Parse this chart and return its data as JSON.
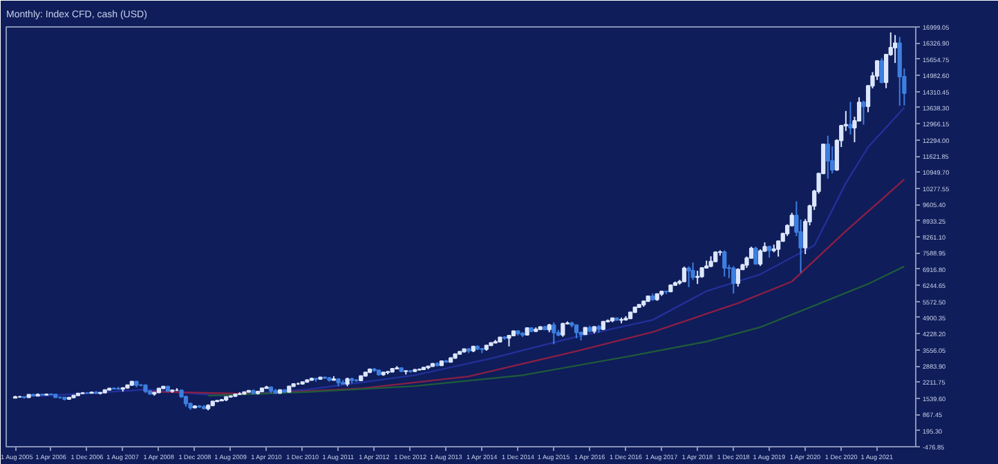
{
  "chart_data": {
    "type": "candlestick",
    "title": "Monthly: Index CFD, cash (USD)",
    "grid": false,
    "xlim": [
      "2005-06-01",
      "2022-04-20"
    ],
    "ylim": [
      -476.85,
      16999.05
    ],
    "xticks": [
      {
        "value": "2005-08-01",
        "label": "1 Aug 2005"
      },
      {
        "value": "2006-04-01",
        "label": "1 Apr 2006"
      },
      {
        "value": "2006-12-01",
        "label": "1 Dec 2006"
      },
      {
        "value": "2007-08-01",
        "label": "1 Aug 2007"
      },
      {
        "value": "2008-04-01",
        "label": "1 Apr 2008"
      },
      {
        "value": "2008-12-01",
        "label": "1 Dec 2008"
      },
      {
        "value": "2009-08-01",
        "label": "1 Aug 2009"
      },
      {
        "value": "2010-04-01",
        "label": "1 Apr 2010"
      },
      {
        "value": "2010-12-01",
        "label": "1 Dec 2010"
      },
      {
        "value": "2011-08-01",
        "label": "1 Aug 2011"
      },
      {
        "value": "2012-04-01",
        "label": "1 Apr 2012"
      },
      {
        "value": "2012-12-01",
        "label": "1 Dec 2012"
      },
      {
        "value": "2013-08-01",
        "label": "1 Aug 2013"
      },
      {
        "value": "2014-04-01",
        "label": "1 Apr 2014"
      },
      {
        "value": "2014-12-01",
        "label": "1 Dec 2014"
      },
      {
        "value": "2015-08-01",
        "label": "1 Aug 2015"
      },
      {
        "value": "2016-04-01",
        "label": "1 Apr 2016"
      },
      {
        "value": "2016-12-01",
        "label": "1 Dec 2016"
      },
      {
        "value": "2017-08-01",
        "label": "1 Aug 2017"
      },
      {
        "value": "2018-04-01",
        "label": "1 Apr 2018"
      },
      {
        "value": "2018-12-01",
        "label": "1 Dec 2018"
      },
      {
        "value": "2019-08-01",
        "label": "1 Aug 2019"
      },
      {
        "value": "2020-04-01",
        "label": "1 Apr 2020"
      },
      {
        "value": "2020-12-01",
        "label": "1 Dec 2020"
      },
      {
        "value": "2021-08-01",
        "label": "1 Aug 2021"
      }
    ],
    "yticks": [
      {
        "value": -476.85,
        "label": "-476.85"
      },
      {
        "value": 195.3,
        "label": "195.30"
      },
      {
        "value": 867.45,
        "label": "867.45"
      },
      {
        "value": 1539.6,
        "label": "1539.60"
      },
      {
        "value": 2211.75,
        "label": "2211.75"
      },
      {
        "value": 2883.9,
        "label": "2883.90"
      },
      {
        "value": 3556.05,
        "label": "3556.05"
      },
      {
        "value": 4228.2,
        "label": "4228.20"
      },
      {
        "value": 4900.35,
        "label": "4900.35"
      },
      {
        "value": 5572.5,
        "label": "5572.50"
      },
      {
        "value": 6244.65,
        "label": "6244.65"
      },
      {
        "value": 6916.8,
        "label": "6916.80"
      },
      {
        "value": 7588.95,
        "label": "7588.95"
      },
      {
        "value": 8261.1,
        "label": "8261.10"
      },
      {
        "value": 8933.25,
        "label": "8933.25"
      },
      {
        "value": 9605.4,
        "label": "9605.40"
      },
      {
        "value": 10277.55,
        "label": "10277.55"
      },
      {
        "value": 10949.7,
        "label": "10949.70"
      },
      {
        "value": 11621.85,
        "label": "11621.85"
      },
      {
        "value": 12294,
        "label": "12294.00"
      },
      {
        "value": 12966.15,
        "label": "12966.15"
      },
      {
        "value": 13638.3,
        "label": "13638.30"
      },
      {
        "value": 14310.45,
        "label": "14310.45"
      },
      {
        "value": 14982.6,
        "label": "14982.60"
      },
      {
        "value": 15654.75,
        "label": "15654.75"
      },
      {
        "value": 16326.9,
        "label": "16326.90"
      },
      {
        "value": 16999.05,
        "label": "16999.05"
      }
    ],
    "series": [
      {
        "type": "line",
        "color": "#22309a",
        "x": [
          "2006-01",
          "2008-01",
          "2009-06",
          "2011-01",
          "2013-01",
          "2014-06",
          "2016-01",
          "2017-06",
          "2018-06",
          "2019-06",
          "2020-06",
          "2021-01",
          "2021-06",
          "2022-02"
        ],
        "values": [
          1620,
          1900,
          1650,
          1900,
          2500,
          3200,
          4100,
          4800,
          6000,
          6700,
          7900,
          10500,
          12000,
          13640
        ]
      },
      {
        "type": "line",
        "color": "#8a1f45",
        "x": [
          "2008-01",
          "2010-01",
          "2012-01",
          "2014-01",
          "2016-01",
          "2017-06",
          "2019-01",
          "2020-01",
          "2021-01",
          "2022-02"
        ],
        "values": [
          1820,
          1720,
          1950,
          2450,
          3500,
          4300,
          5500,
          6400,
          8500,
          10650
        ]
      },
      {
        "type": "line",
        "color": "#1f5a3c",
        "x": [
          "2009-03",
          "2011-01",
          "2013-01",
          "2015-01",
          "2017-01",
          "2018-06",
          "2019-06",
          "2020-06",
          "2021-06",
          "2022-02"
        ],
        "values": [
          1650,
          1800,
          2050,
          2500,
          3300,
          3900,
          4500,
          5400,
          6300,
          7030
        ]
      },
      {
        "type": "candlestick",
        "x": [
          "2005-08",
          "2005-09",
          "2005-10",
          "2005-11",
          "2005-12",
          "2006-01",
          "2006-02",
          "2006-03",
          "2006-04",
          "2006-05",
          "2006-06",
          "2006-07",
          "2006-08",
          "2006-09",
          "2006-10",
          "2006-11",
          "2006-12",
          "2007-01",
          "2007-02",
          "2007-03",
          "2007-04",
          "2007-05",
          "2007-06",
          "2007-07",
          "2007-08",
          "2007-09",
          "2007-10",
          "2007-11",
          "2007-12",
          "2008-01",
          "2008-02",
          "2008-03",
          "2008-04",
          "2008-05",
          "2008-06",
          "2008-07",
          "2008-08",
          "2008-09",
          "2008-10",
          "2008-11",
          "2008-12",
          "2009-01",
          "2009-02",
          "2009-03",
          "2009-04",
          "2009-05",
          "2009-06",
          "2009-07",
          "2009-08",
          "2009-09",
          "2009-10",
          "2009-11",
          "2009-12",
          "2010-01",
          "2010-02",
          "2010-03",
          "2010-04",
          "2010-05",
          "2010-06",
          "2010-07",
          "2010-08",
          "2010-09",
          "2010-10",
          "2010-11",
          "2010-12",
          "2011-01",
          "2011-02",
          "2011-03",
          "2011-04",
          "2011-05",
          "2011-06",
          "2011-07",
          "2011-08",
          "2011-09",
          "2011-10",
          "2011-11",
          "2011-12",
          "2012-01",
          "2012-02",
          "2012-03",
          "2012-04",
          "2012-05",
          "2012-06",
          "2012-07",
          "2012-08",
          "2012-09",
          "2012-10",
          "2012-11",
          "2012-12",
          "2013-01",
          "2013-02",
          "2013-03",
          "2013-04",
          "2013-05",
          "2013-06",
          "2013-07",
          "2013-08",
          "2013-09",
          "2013-10",
          "2013-11",
          "2013-12",
          "2014-01",
          "2014-02",
          "2014-03",
          "2014-04",
          "2014-05",
          "2014-06",
          "2014-07",
          "2014-08",
          "2014-09",
          "2014-10",
          "2014-11",
          "2014-12",
          "2015-01",
          "2015-02",
          "2015-03",
          "2015-04",
          "2015-05",
          "2015-06",
          "2015-07",
          "2015-08",
          "2015-09",
          "2015-10",
          "2015-11",
          "2015-12",
          "2016-01",
          "2016-02",
          "2016-03",
          "2016-04",
          "2016-05",
          "2016-06",
          "2016-07",
          "2016-08",
          "2016-09",
          "2016-10",
          "2016-11",
          "2016-12",
          "2017-01",
          "2017-02",
          "2017-03",
          "2017-04",
          "2017-05",
          "2017-06",
          "2017-07",
          "2017-08",
          "2017-09",
          "2017-10",
          "2017-11",
          "2017-12",
          "2018-01",
          "2018-02",
          "2018-03",
          "2018-04",
          "2018-05",
          "2018-06",
          "2018-07",
          "2018-08",
          "2018-09",
          "2018-10",
          "2018-11",
          "2018-12",
          "2019-01",
          "2019-02",
          "2019-03",
          "2019-04",
          "2019-05",
          "2019-06",
          "2019-07",
          "2019-08",
          "2019-09",
          "2019-10",
          "2019-11",
          "2019-12",
          "2020-01",
          "2020-02",
          "2020-03",
          "2020-04",
          "2020-05",
          "2020-06",
          "2020-07",
          "2020-08",
          "2020-09",
          "2020-10",
          "2020-11",
          "2020-12",
          "2021-01",
          "2021-02",
          "2021-03",
          "2021-04",
          "2021-05",
          "2021-06",
          "2021-07",
          "2021-08",
          "2021-09",
          "2021-10",
          "2021-11",
          "2021-12",
          "2022-01",
          "2022-02"
        ],
        "ohlc": [
          [
            1560,
            1640,
            1540,
            1600
          ],
          [
            1600,
            1640,
            1560,
            1602
          ],
          [
            1602,
            1620,
            1530,
            1580
          ],
          [
            1580,
            1700,
            1570,
            1690
          ],
          [
            1690,
            1720,
            1630,
            1645
          ],
          [
            1645,
            1740,
            1630,
            1700
          ],
          [
            1700,
            1730,
            1650,
            1680
          ],
          [
            1680,
            1730,
            1660,
            1710
          ],
          [
            1710,
            1750,
            1680,
            1700
          ],
          [
            1700,
            1710,
            1560,
            1580
          ],
          [
            1580,
            1600,
            1520,
            1575
          ],
          [
            1575,
            1580,
            1450,
            1505
          ],
          [
            1505,
            1590,
            1480,
            1570
          ],
          [
            1570,
            1670,
            1560,
            1655
          ],
          [
            1655,
            1760,
            1650,
            1740
          ],
          [
            1740,
            1800,
            1720,
            1760
          ],
          [
            1760,
            1790,
            1730,
            1757
          ],
          [
            1757,
            1820,
            1740,
            1790
          ],
          [
            1790,
            1840,
            1730,
            1750
          ],
          [
            1750,
            1800,
            1700,
            1770
          ],
          [
            1770,
            1900,
            1760,
            1890
          ],
          [
            1890,
            1960,
            1870,
            1950
          ],
          [
            1950,
            1990,
            1900,
            1934
          ],
          [
            1934,
            2020,
            1910,
            1930
          ],
          [
            1930,
            1980,
            1820,
            1970
          ],
          [
            1970,
            2100,
            1950,
            2090
          ],
          [
            2090,
            2240,
            2070,
            2240
          ],
          [
            2240,
            2240,
            2000,
            2090
          ],
          [
            2090,
            2130,
            2040,
            2085
          ],
          [
            2085,
            2090,
            1760,
            1840
          ],
          [
            1840,
            1880,
            1710,
            1720
          ],
          [
            1720,
            1800,
            1650,
            1780
          ],
          [
            1780,
            1960,
            1760,
            1950
          ],
          [
            1950,
            2050,
            1930,
            2030
          ],
          [
            2030,
            2060,
            1830,
            1840
          ],
          [
            1840,
            1910,
            1770,
            1870
          ],
          [
            1870,
            1960,
            1850,
            1870
          ],
          [
            1870,
            1900,
            1560,
            1610
          ],
          [
            1610,
            1650,
            1190,
            1320
          ],
          [
            1320,
            1360,
            1060,
            1150
          ],
          [
            1150,
            1250,
            1140,
            1210
          ],
          [
            1210,
            1260,
            1140,
            1180
          ],
          [
            1180,
            1260,
            1110,
            1110
          ],
          [
            1110,
            1290,
            1040,
            1240
          ],
          [
            1240,
            1420,
            1230,
            1410
          ],
          [
            1410,
            1470,
            1380,
            1440
          ],
          [
            1440,
            1510,
            1420,
            1480
          ],
          [
            1480,
            1610,
            1420,
            1600
          ],
          [
            1600,
            1660,
            1570,
            1630
          ],
          [
            1630,
            1730,
            1600,
            1710
          ],
          [
            1710,
            1790,
            1690,
            1720
          ],
          [
            1720,
            1810,
            1700,
            1800
          ],
          [
            1800,
            1880,
            1790,
            1860
          ],
          [
            1860,
            1900,
            1730,
            1740
          ],
          [
            1740,
            1830,
            1700,
            1820
          ],
          [
            1820,
            1970,
            1810,
            1960
          ],
          [
            1960,
            2060,
            1950,
            2000
          ],
          [
            2000,
            2030,
            1750,
            1850
          ],
          [
            1850,
            1930,
            1750,
            1760
          ],
          [
            1760,
            1900,
            1730,
            1890
          ],
          [
            1890,
            1910,
            1780,
            1800
          ],
          [
            1800,
            2050,
            1800,
            2040
          ],
          [
            2040,
            2150,
            2030,
            2140
          ],
          [
            2140,
            2200,
            2100,
            2140
          ],
          [
            2140,
            2230,
            2130,
            2220
          ],
          [
            2220,
            2330,
            2210,
            2300
          ],
          [
            2300,
            2400,
            2280,
            2360
          ],
          [
            2360,
            2370,
            2230,
            2340
          ],
          [
            2340,
            2430,
            2310,
            2410
          ],
          [
            2410,
            2440,
            2340,
            2390
          ],
          [
            2390,
            2400,
            2240,
            2300
          ],
          [
            2300,
            2460,
            2290,
            2340
          ],
          [
            2340,
            2350,
            2040,
            2190
          ],
          [
            2190,
            2300,
            2130,
            2140
          ],
          [
            2140,
            2400,
            2040,
            2350
          ],
          [
            2350,
            2400,
            2160,
            2290
          ],
          [
            2290,
            2340,
            2230,
            2280
          ],
          [
            2280,
            2480,
            2270,
            2470
          ],
          [
            2470,
            2630,
            2460,
            2620
          ],
          [
            2620,
            2770,
            2610,
            2750
          ],
          [
            2750,
            2800,
            2640,
            2710
          ],
          [
            2710,
            2720,
            2490,
            2530
          ],
          [
            2530,
            2630,
            2480,
            2620
          ],
          [
            2620,
            2680,
            2540,
            2640
          ],
          [
            2640,
            2790,
            2620,
            2770
          ],
          [
            2770,
            2880,
            2760,
            2800
          ],
          [
            2800,
            2820,
            2640,
            2660
          ],
          [
            2660,
            2700,
            2530,
            2680
          ],
          [
            2680,
            2710,
            2600,
            2660
          ],
          [
            2660,
            2760,
            2640,
            2730
          ],
          [
            2730,
            2780,
            2700,
            2740
          ],
          [
            2740,
            2830,
            2720,
            2820
          ],
          [
            2820,
            2880,
            2750,
            2870
          ],
          [
            2870,
            3010,
            2860,
            2980
          ],
          [
            2980,
            3040,
            2870,
            2910
          ],
          [
            2910,
            3100,
            2900,
            3090
          ],
          [
            3090,
            3140,
            3030,
            3050
          ],
          [
            3050,
            3240,
            3040,
            3220
          ],
          [
            3220,
            3390,
            3190,
            3380
          ],
          [
            3380,
            3490,
            3370,
            3480
          ],
          [
            3480,
            3600,
            3440,
            3590
          ],
          [
            3590,
            3630,
            3420,
            3520
          ],
          [
            3520,
            3720,
            3460,
            3700
          ],
          [
            3700,
            3740,
            3550,
            3600
          ],
          [
            3600,
            3640,
            3420,
            3580
          ],
          [
            3580,
            3750,
            3520,
            3740
          ],
          [
            3740,
            3860,
            3720,
            3850
          ],
          [
            3850,
            3970,
            3830,
            3890
          ],
          [
            3890,
            4090,
            3860,
            4080
          ],
          [
            4080,
            4120,
            3980,
            4050
          ],
          [
            4050,
            4160,
            3700,
            4150
          ],
          [
            4150,
            4350,
            4140,
            4340
          ],
          [
            4340,
            4370,
            4150,
            4240
          ],
          [
            4240,
            4300,
            4090,
            4180
          ],
          [
            4180,
            4480,
            4150,
            4470
          ],
          [
            4470,
            4490,
            4290,
            4330
          ],
          [
            4330,
            4490,
            4300,
            4410
          ],
          [
            4410,
            4540,
            4380,
            4510
          ],
          [
            4510,
            4560,
            4380,
            4400
          ],
          [
            4400,
            4640,
            4290,
            4590
          ],
          [
            4590,
            4700,
            3790,
            4270
          ],
          [
            4270,
            4390,
            4120,
            4180
          ],
          [
            4180,
            4680,
            4100,
            4650
          ],
          [
            4650,
            4740,
            4620,
            4670
          ],
          [
            4670,
            4730,
            4490,
            4590
          ],
          [
            4590,
            4600,
            4040,
            4280
          ],
          [
            4280,
            4310,
            3950,
            4200
          ],
          [
            4200,
            4490,
            4190,
            4480
          ],
          [
            4480,
            4560,
            4300,
            4340
          ],
          [
            4340,
            4530,
            4240,
            4520
          ],
          [
            4520,
            4590,
            4270,
            4420
          ],
          [
            4420,
            4740,
            4380,
            4730
          ],
          [
            4730,
            4820,
            4700,
            4770
          ],
          [
            4770,
            4900,
            4710,
            4880
          ],
          [
            4880,
            4900,
            4780,
            4800
          ],
          [
            4800,
            4900,
            4660,
            4810
          ],
          [
            4810,
            4960,
            4770,
            4860
          ],
          [
            4860,
            5130,
            4850,
            5120
          ],
          [
            5120,
            5340,
            5110,
            5330
          ],
          [
            5330,
            5450,
            5300,
            5440
          ],
          [
            5440,
            5590,
            5350,
            5580
          ],
          [
            5580,
            5810,
            5570,
            5790
          ],
          [
            5790,
            5900,
            5600,
            5650
          ],
          [
            5650,
            5900,
            5600,
            5880
          ],
          [
            5880,
            6000,
            5800,
            5990
          ],
          [
            5990,
            6020,
            5880,
            5980
          ],
          [
            5980,
            6260,
            5970,
            6250
          ],
          [
            6250,
            6400,
            6220,
            6340
          ],
          [
            6340,
            6470,
            6270,
            6400
          ],
          [
            6400,
            7020,
            6400,
            6950
          ],
          [
            6950,
            7030,
            6170,
            6850
          ],
          [
            6850,
            7190,
            6470,
            6580
          ],
          [
            6580,
            6850,
            6300,
            6610
          ],
          [
            6610,
            7000,
            6560,
            6970
          ],
          [
            6970,
            7270,
            6950,
            7040
          ],
          [
            7040,
            7450,
            7000,
            7230
          ],
          [
            7230,
            7640,
            7220,
            7620
          ],
          [
            7620,
            7700,
            7480,
            7630
          ],
          [
            7630,
            7700,
            6610,
            6970
          ],
          [
            6970,
            7100,
            6540,
            6950
          ],
          [
            6950,
            7040,
            5900,
            6330
          ],
          [
            6330,
            6950,
            6190,
            6900
          ],
          [
            6900,
            7140,
            6880,
            7090
          ],
          [
            7090,
            7440,
            6970,
            7380
          ],
          [
            7380,
            7850,
            7370,
            7780
          ],
          [
            7780,
            7850,
            7110,
            7130
          ],
          [
            7130,
            7740,
            7050,
            7670
          ],
          [
            7670,
            8030,
            7640,
            7850
          ],
          [
            7850,
            7890,
            7400,
            7690
          ],
          [
            7690,
            7940,
            7620,
            7750
          ],
          [
            7750,
            8100,
            7440,
            8080
          ],
          [
            8080,
            8420,
            8070,
            8400
          ],
          [
            8400,
            8780,
            8300,
            8730
          ],
          [
            8730,
            9260,
            8710,
            9150
          ],
          [
            9150,
            9740,
            8290,
            8460
          ],
          [
            8460,
            8980,
            6770,
            7810
          ],
          [
            7810,
            9000,
            7540,
            8890
          ],
          [
            8890,
            9600,
            8740,
            9550
          ],
          [
            9550,
            10220,
            9380,
            10160
          ],
          [
            10160,
            10910,
            10060,
            10900
          ],
          [
            10900,
            12140,
            10880,
            12110
          ],
          [
            12110,
            12470,
            10680,
            11420
          ],
          [
            11420,
            12030,
            10900,
            11050
          ],
          [
            11050,
            12320,
            11010,
            12270
          ],
          [
            12270,
            12920,
            12000,
            12890
          ],
          [
            12890,
            13500,
            12670,
            12930
          ],
          [
            12930,
            13880,
            12520,
            12800
          ],
          [
            12800,
            13260,
            12200,
            13090
          ],
          [
            13090,
            14070,
            13080,
            13860
          ],
          [
            13860,
            13930,
            12930,
            13690
          ],
          [
            13690,
            14570,
            13450,
            14550
          ],
          [
            14550,
            15120,
            14440,
            14960
          ],
          [
            14960,
            15600,
            14790,
            15580
          ],
          [
            15580,
            15700,
            14660,
            14690
          ],
          [
            14690,
            15860,
            14450,
            15850
          ],
          [
            15850,
            16770,
            15800,
            16140
          ],
          [
            16140,
            16660,
            15500,
            16320
          ],
          [
            16320,
            16580,
            13720,
            14930
          ],
          [
            14930,
            15270,
            13730,
            14240
          ]
        ],
        "colors": [
          "#dce6ff",
          "#dce6ff",
          "#3d7fe0",
          "#dce6ff",
          "#3d7fe0",
          "#dce6ff",
          "#3d7fe0",
          "#dce6ff",
          "#3d7fe0",
          "#3d7fe0",
          "#3d7fe0",
          "#3d7fe0",
          "#dce6ff",
          "#dce6ff",
          "#dce6ff",
          "#dce6ff",
          "#3d7fe0",
          "#dce6ff",
          "#3d7fe0",
          "#dce6ff",
          "#dce6ff",
          "#dce6ff",
          "#3d7fe0",
          "#3d7fe0",
          "#dce6ff",
          "#dce6ff",
          "#dce6ff",
          "#3d7fe0",
          "#3d7fe0",
          "#3d7fe0",
          "#3d7fe0",
          "#dce6ff",
          "#dce6ff",
          "#dce6ff",
          "#3d7fe0",
          "#dce6ff",
          "#dce6ff",
          "#3d7fe0",
          "#3d7fe0",
          "#3d7fe0",
          "#dce6ff",
          "#3d7fe0",
          "#3d7fe0",
          "#dce6ff",
          "#dce6ff",
          "#dce6ff",
          "#dce6ff",
          "#dce6ff",
          "#dce6ff",
          "#dce6ff",
          "#dce6ff",
          "#dce6ff",
          "#dce6ff",
          "#3d7fe0",
          "#dce6ff",
          "#dce6ff",
          "#dce6ff",
          "#3d7fe0",
          "#3d7fe0",
          "#dce6ff",
          "#3d7fe0",
          "#dce6ff",
          "#dce6ff",
          "#dce6ff",
          "#dce6ff",
          "#dce6ff",
          "#dce6ff",
          "#3d7fe0",
          "#dce6ff",
          "#3d7fe0",
          "#3d7fe0",
          "#dce6ff",
          "#3d7fe0",
          "#3d7fe0",
          "#dce6ff",
          "#3d7fe0",
          "#3d7fe0",
          "#dce6ff",
          "#dce6ff",
          "#dce6ff",
          "#3d7fe0",
          "#3d7fe0",
          "#dce6ff",
          "#dce6ff",
          "#dce6ff",
          "#dce6ff",
          "#3d7fe0",
          "#dce6ff",
          "#3d7fe0",
          "#dce6ff",
          "#dce6ff",
          "#dce6ff",
          "#dce6ff",
          "#dce6ff",
          "#3d7fe0",
          "#dce6ff",
          "#3d7fe0",
          "#dce6ff",
          "#dce6ff",
          "#dce6ff",
          "#dce6ff",
          "#3d7fe0",
          "#dce6ff",
          "#3d7fe0",
          "#3d7fe0",
          "#dce6ff",
          "#dce6ff",
          "#dce6ff",
          "#dce6ff",
          "#3d7fe0",
          "#dce6ff",
          "#dce6ff",
          "#3d7fe0",
          "#3d7fe0",
          "#dce6ff",
          "#3d7fe0",
          "#dce6ff",
          "#dce6ff",
          "#3d7fe0",
          "#dce6ff",
          "#3d7fe0",
          "#3d7fe0",
          "#dce6ff",
          "#dce6ff",
          "#3d7fe0",
          "#3d7fe0",
          "#3d7fe0",
          "#dce6ff",
          "#3d7fe0",
          "#dce6ff",
          "#3d7fe0",
          "#dce6ff",
          "#dce6ff",
          "#dce6ff",
          "#3d7fe0",
          "#dce6ff",
          "#dce6ff",
          "#dce6ff",
          "#dce6ff",
          "#dce6ff",
          "#dce6ff",
          "#dce6ff",
          "#3d7fe0",
          "#dce6ff",
          "#dce6ff",
          "#3d7fe0",
          "#dce6ff",
          "#dce6ff",
          "#dce6ff",
          "#dce6ff",
          "#3d7fe0",
          "#3d7fe0",
          "#dce6ff",
          "#dce6ff",
          "#dce6ff",
          "#dce6ff",
          "#dce6ff",
          "#dce6ff",
          "#3d7fe0",
          "#3d7fe0",
          "#3d7fe0",
          "#dce6ff",
          "#dce6ff",
          "#dce6ff",
          "#dce6ff",
          "#3d7fe0",
          "#dce6ff",
          "#dce6ff",
          "#3d7fe0",
          "#dce6ff",
          "#dce6ff",
          "#dce6ff",
          "#dce6ff",
          "#dce6ff",
          "#3d7fe0",
          "#3d7fe0",
          "#dce6ff",
          "#dce6ff",
          "#dce6ff",
          "#dce6ff",
          "#dce6ff",
          "#3d7fe0",
          "#3d7fe0",
          "#dce6ff",
          "#dce6ff",
          "#dce6ff",
          "#3d7fe0",
          "#dce6ff",
          "#dce6ff",
          "#3d7fe0",
          "#dce6ff",
          "#dce6ff",
          "#dce6ff",
          "#3d7fe0",
          "#dce6ff",
          "#dce6ff",
          "#dce6ff",
          "#3d7fe0",
          "#3d7fe0"
        ]
      }
    ]
  }
}
